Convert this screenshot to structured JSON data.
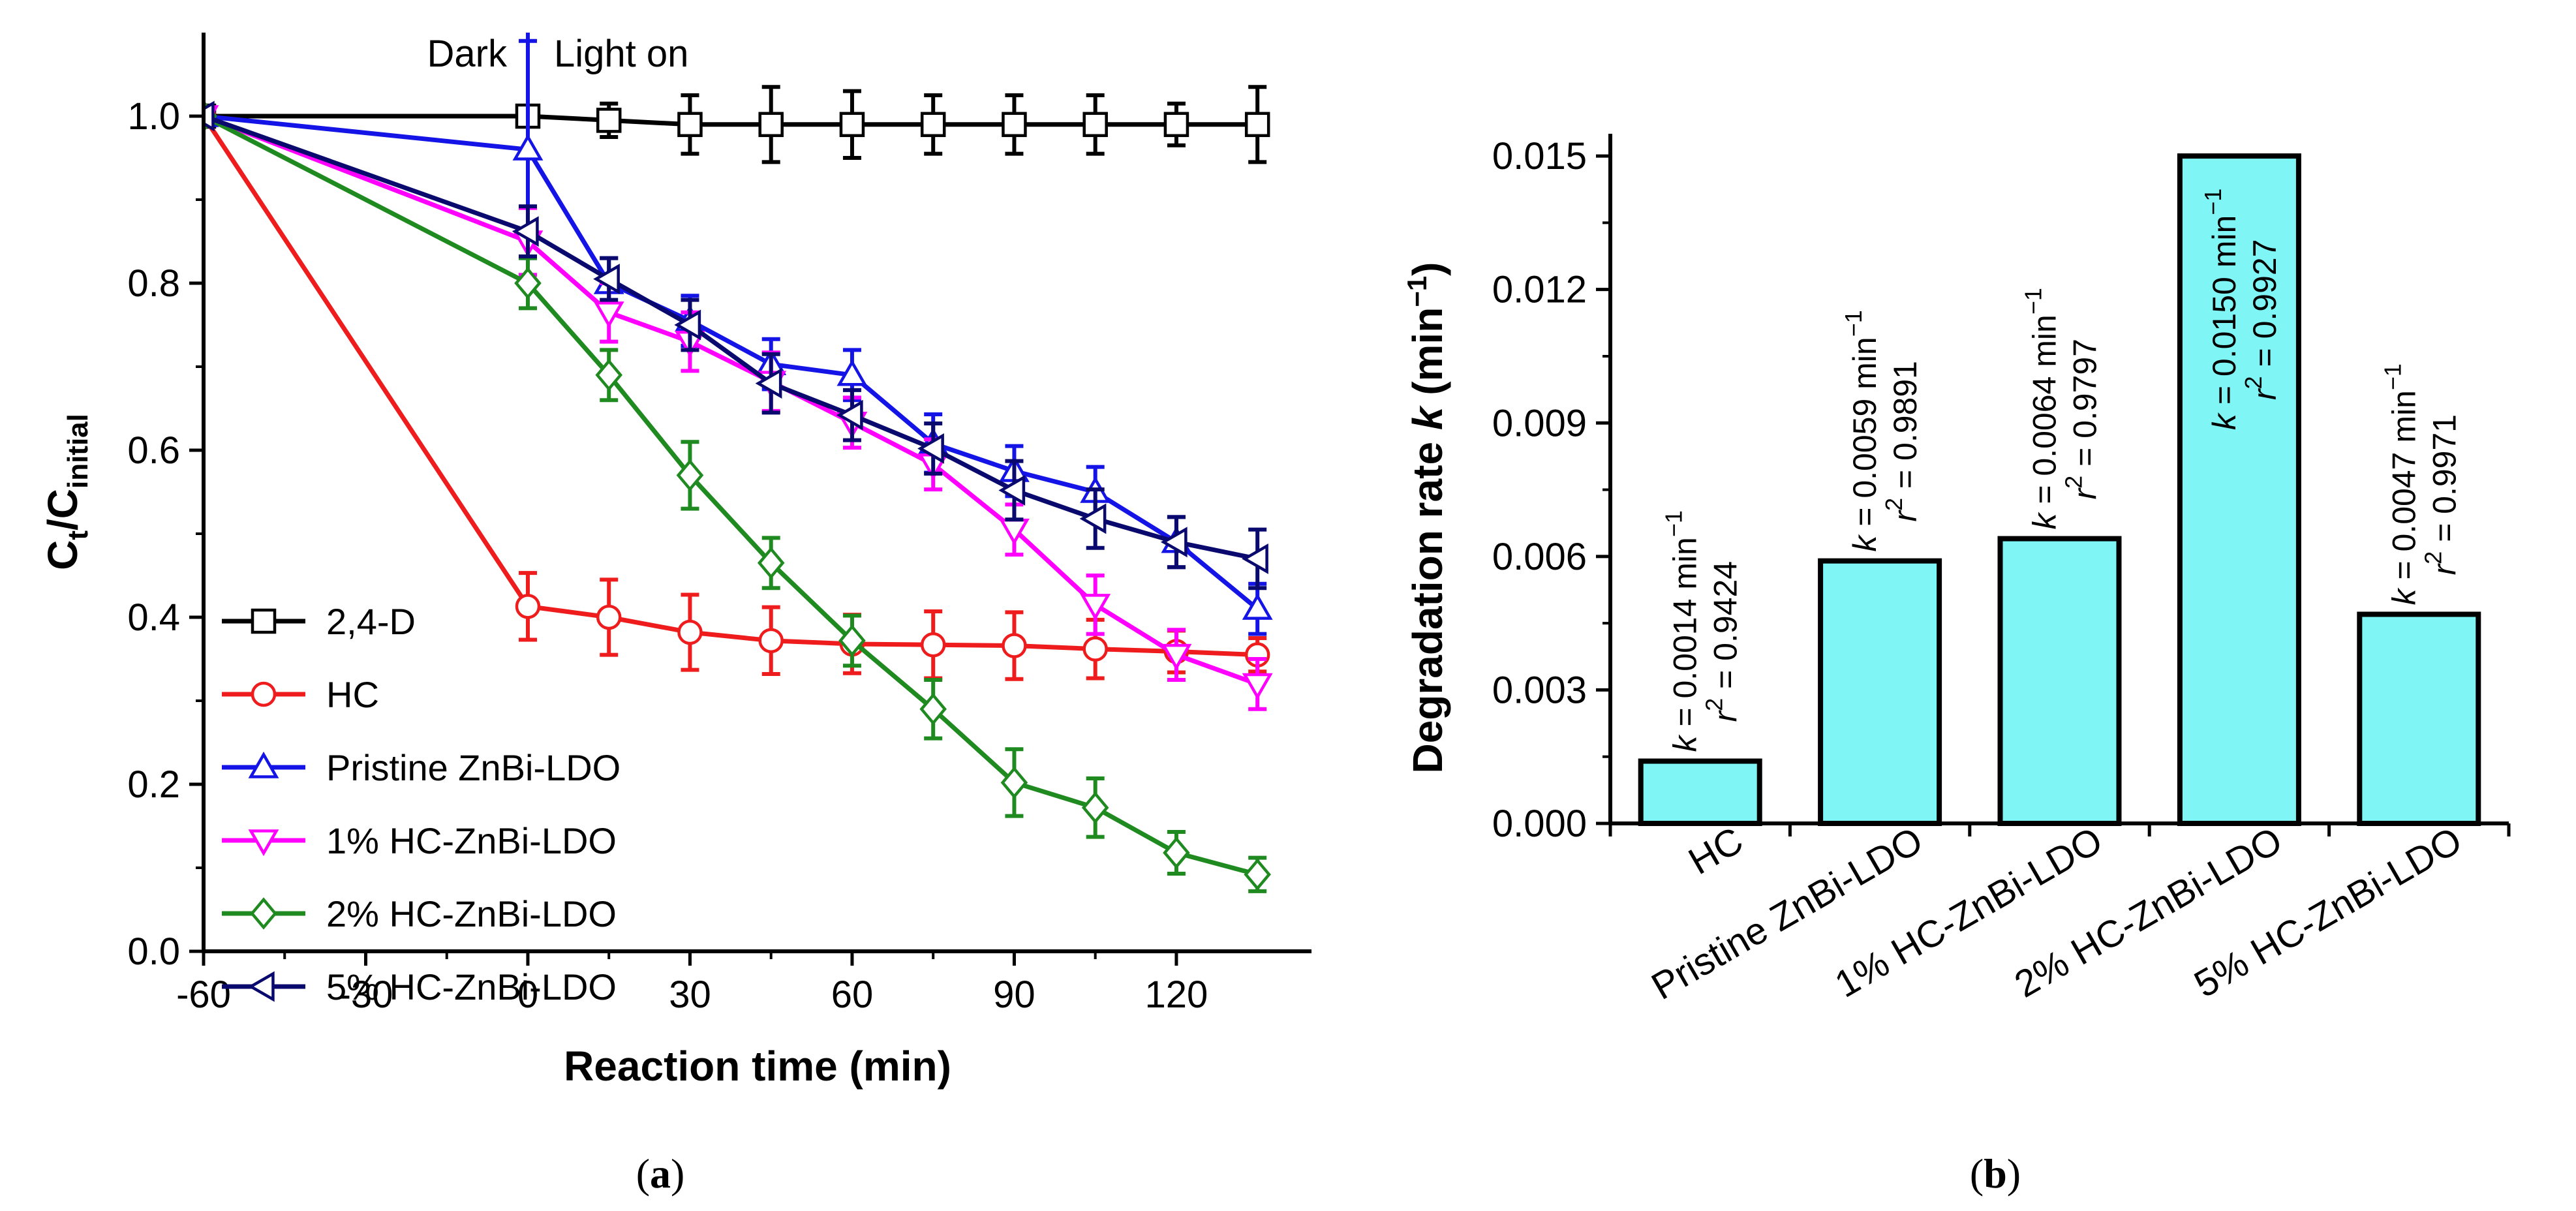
{
  "chart_data": [
    {
      "type": "line",
      "panel_label_open": "(",
      "panel_label_letter": "a",
      "panel_label_close": ")",
      "xlabel": "Reaction time (min)",
      "ylabel_main": "C",
      "ylabel_sub1": "t",
      "ylabel_slash": "/C",
      "ylabel_sub2": "initial",
      "xlim": [
        -60,
        145
      ],
      "ylim": [
        0.0,
        1.1
      ],
      "xticks": [
        -60,
        -30,
        0,
        30,
        60,
        90,
        120
      ],
      "xtick_labels": [
        "-60",
        "-30",
        "0",
        "30",
        "60",
        "90",
        "120"
      ],
      "yticks": [
        0.0,
        0.2,
        0.4,
        0.6,
        0.8,
        1.0
      ],
      "ytick_labels": [
        "0.0",
        "0.2",
        "0.4",
        "0.6",
        "0.8",
        "1.0"
      ],
      "annotations": {
        "dark": "Dark",
        "light_on": "Light on"
      },
      "legend_position": "bottom-left",
      "series": [
        {
          "name": "2,4-D",
          "color": "#000000",
          "marker": "square",
          "x": [
            -60,
            0,
            15,
            30,
            45,
            60,
            75,
            90,
            105,
            120,
            135
          ],
          "y": [
            1.0,
            1.0,
            0.995,
            0.99,
            0.99,
            0.99,
            0.99,
            0.99,
            0.99,
            0.99,
            0.99
          ],
          "err": [
            0.0,
            0.01,
            0.02,
            0.035,
            0.045,
            0.04,
            0.035,
            0.035,
            0.035,
            0.025,
            0.045
          ]
        },
        {
          "name": "HC",
          "color": "#ee1c1c",
          "marker": "circle",
          "x": [
            -60,
            0,
            15,
            30,
            45,
            60,
            75,
            90,
            105,
            120,
            135
          ],
          "y": [
            1.0,
            0.413,
            0.4,
            0.382,
            0.372,
            0.368,
            0.367,
            0.366,
            0.362,
            0.359,
            0.355
          ],
          "err": [
            0.0,
            0.04,
            0.045,
            0.045,
            0.04,
            0.035,
            0.04,
            0.04,
            0.035,
            0.025,
            0.02
          ]
        },
        {
          "name": "Pristine ZnBi-LDO",
          "color": "#1414e6",
          "marker": "triangle-up",
          "x": [
            -60,
            0,
            15,
            30,
            45,
            60,
            75,
            90,
            105,
            120,
            135
          ],
          "y": [
            1.0,
            0.96,
            0.8,
            0.755,
            0.703,
            0.69,
            0.608,
            0.575,
            0.55,
            0.49,
            0.41
          ],
          "err": [
            0.0,
            0.13,
            0.03,
            0.03,
            0.03,
            0.03,
            0.035,
            0.03,
            0.03,
            0.03,
            0.03
          ]
        },
        {
          "name": "1% HC-ZnBi-LDO",
          "color": "#ff00ff",
          "marker": "triangle-down",
          "x": [
            -60,
            0,
            15,
            30,
            45,
            60,
            75,
            90,
            105,
            120,
            135
          ],
          "y": [
            1.0,
            0.85,
            0.765,
            0.73,
            0.682,
            0.633,
            0.583,
            0.505,
            0.415,
            0.355,
            0.32
          ],
          "err": [
            0.0,
            0.04,
            0.035,
            0.035,
            0.035,
            0.03,
            0.03,
            0.03,
            0.035,
            0.03,
            0.03
          ]
        },
        {
          "name": "2% HC-ZnBi-LDO",
          "color": "#1f8a1f",
          "marker": "diamond",
          "x": [
            -60,
            0,
            15,
            30,
            45,
            60,
            75,
            90,
            105,
            120,
            135
          ],
          "y": [
            1.0,
            0.8,
            0.69,
            0.57,
            0.465,
            0.372,
            0.29,
            0.202,
            0.172,
            0.118,
            0.092
          ],
          "err": [
            0.0,
            0.03,
            0.03,
            0.04,
            0.03,
            0.03,
            0.035,
            0.04,
            0.035,
            0.025,
            0.02
          ]
        },
        {
          "name": "5% HC-ZnBi-LDO",
          "color": "#0a0a6e",
          "marker": "triangle-left",
          "x": [
            -60,
            0,
            15,
            30,
            45,
            60,
            75,
            90,
            105,
            120,
            135
          ],
          "y": [
            1.0,
            0.862,
            0.805,
            0.75,
            0.68,
            0.642,
            0.602,
            0.552,
            0.518,
            0.49,
            0.47
          ],
          "err": [
            0.0,
            0.03,
            0.025,
            0.03,
            0.035,
            0.03,
            0.03,
            0.035,
            0.035,
            0.03,
            0.035
          ]
        }
      ]
    },
    {
      "type": "bar",
      "panel_label_open": "(",
      "panel_label_letter": "b",
      "panel_label_close": ")",
      "ylabel_prefix": "Degradation rate ",
      "ylabel_k": "k",
      "ylabel_unit_open": " (min",
      "ylabel_unit_sup": "−1",
      "ylabel_unit_close": ")",
      "ylim": [
        0.0,
        0.0155
      ],
      "yticks": [
        0.0,
        0.003,
        0.006,
        0.009,
        0.012,
        0.015
      ],
      "ytick_labels": [
        "0.000",
        "0.003",
        "0.006",
        "0.009",
        "0.012",
        "0.015"
      ],
      "bar_color": "#7ff5f5",
      "categories": [
        "HC",
        "Pristine ZnBi-LDO",
        "1% HC-ZnBi-LDO",
        "2% HC-ZnBi-LDO",
        "5% HC-ZnBi-LDO"
      ],
      "values": [
        0.0014,
        0.0059,
        0.0064,
        0.015,
        0.0047
      ],
      "k_texts": [
        "= 0.0014 min",
        "= 0.0059 min",
        "= 0.0064 min",
        "= 0.0150 min",
        "= 0.0047 min"
      ],
      "r2_texts": [
        "= 0.9424",
        "= 0.9891",
        "= 0.9797",
        "= 0.9927",
        "= 0.9971"
      ],
      "k_symbol": "k",
      "r_symbol": "r",
      "sup_2": "2",
      "sup_minus1": "−1"
    }
  ]
}
